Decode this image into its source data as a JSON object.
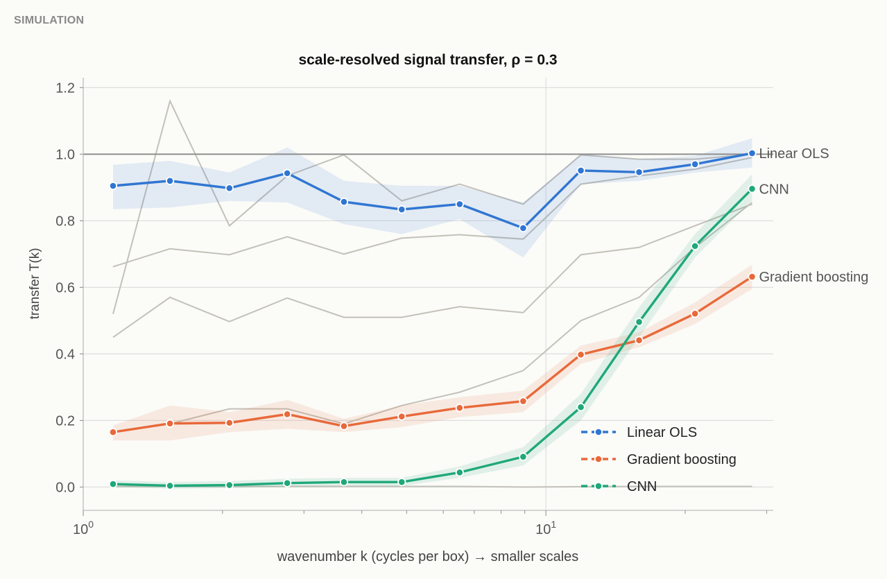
{
  "header": {
    "section_label": "SIMULATION"
  },
  "chart_data": {
    "type": "line",
    "title": "scale-resolved signal transfer, ρ = 0.3",
    "xlabel": "wavenumber k (cycles per box) → smaller scales",
    "ylabel": "transfer T(k)",
    "xscale": "log",
    "xlim": [
      1.0,
      31.0
    ],
    "ylim": [
      -0.07,
      1.23
    ],
    "x_ticks": [
      {
        "value": 1,
        "label": "10",
        "exp": "0"
      },
      {
        "value": 10,
        "label": "10",
        "exp": "1"
      }
    ],
    "y_ticks": [
      0.0,
      0.2,
      0.4,
      0.6,
      0.8,
      1.0,
      1.2
    ],
    "y_tick_labels": [
      "0.0",
      "0.2",
      "0.4",
      "0.6",
      "0.8",
      "1.0",
      "1.2"
    ],
    "grid": "horizontal",
    "reference_line": 1.0,
    "legend_position": "lower-right",
    "x": [
      1.16,
      1.54,
      2.07,
      2.76,
      3.66,
      4.88,
      6.51,
      8.93,
      11.9,
      15.9,
      21.0,
      27.9
    ],
    "series": [
      {
        "name": "Linear OLS",
        "color": "#2f76d2",
        "values": [
          0.905,
          0.92,
          0.898,
          0.943,
          0.857,
          0.834,
          0.85,
          0.778,
          0.951,
          0.946,
          0.97,
          1.003
        ],
        "band_low": [
          0.835,
          0.84,
          0.86,
          0.855,
          0.79,
          0.76,
          0.805,
          0.69,
          0.91,
          0.92,
          0.945,
          0.96
        ],
        "band_high": [
          0.968,
          0.98,
          0.945,
          1.02,
          0.92,
          0.905,
          0.905,
          0.855,
          1.0,
          0.985,
          0.995,
          1.048
        ]
      },
      {
        "name": "Gradient boosting",
        "color": "#e8693a",
        "values": [
          0.165,
          0.191,
          0.193,
          0.219,
          0.183,
          0.212,
          0.238,
          0.258,
          0.398,
          0.441,
          0.521,
          0.632
        ],
        "band_low": [
          0.14,
          0.14,
          0.165,
          0.175,
          0.165,
          0.18,
          0.21,
          0.225,
          0.37,
          0.42,
          0.49,
          0.595
        ],
        "band_high": [
          0.185,
          0.245,
          0.225,
          0.262,
          0.205,
          0.245,
          0.27,
          0.29,
          0.425,
          0.465,
          0.555,
          0.668
        ]
      },
      {
        "name": "CNN",
        "color": "#1fa87a",
        "values": [
          0.009,
          0.004,
          0.006,
          0.012,
          0.015,
          0.015,
          0.044,
          0.091,
          0.24,
          0.496,
          0.724,
          0.896
        ],
        "band_low": [
          0.0,
          -0.005,
          -0.003,
          0.002,
          0.003,
          0.003,
          0.028,
          0.065,
          0.2,
          0.45,
          0.69,
          0.86
        ],
        "band_high": [
          0.02,
          0.015,
          0.018,
          0.025,
          0.028,
          0.028,
          0.062,
          0.12,
          0.28,
          0.54,
          0.76,
          0.94
        ]
      }
    ],
    "background_series": [
      [
        0.52,
        1.16,
        0.785,
        0.935,
        0.998,
        0.86,
        0.91,
        0.85,
        0.998,
        0.985,
        0.985,
        1.0
      ],
      [
        0.662,
        0.716,
        0.698,
        0.752,
        0.7,
        0.748,
        0.758,
        0.745,
        0.91,
        0.935,
        0.955,
        0.99
      ],
      [
        0.45,
        0.57,
        0.497,
        0.568,
        0.51,
        0.51,
        0.542,
        0.524,
        0.698,
        0.72,
        0.785,
        0.85
      ],
      [
        0.165,
        0.19,
        0.235,
        0.235,
        0.19,
        0.245,
        0.285,
        0.35,
        0.5,
        0.57,
        0.72,
        0.855
      ],
      [
        0.002,
        0.002,
        0.002,
        0.002,
        0.002,
        0.002,
        0.002,
        0.0,
        0.001,
        0.002,
        0.002,
        0.002
      ]
    ],
    "end_labels": [
      "Linear OLS",
      "CNN",
      "Gradient boosting"
    ],
    "legend": [
      "Linear OLS",
      "Gradient boosting",
      "CNN"
    ]
  }
}
